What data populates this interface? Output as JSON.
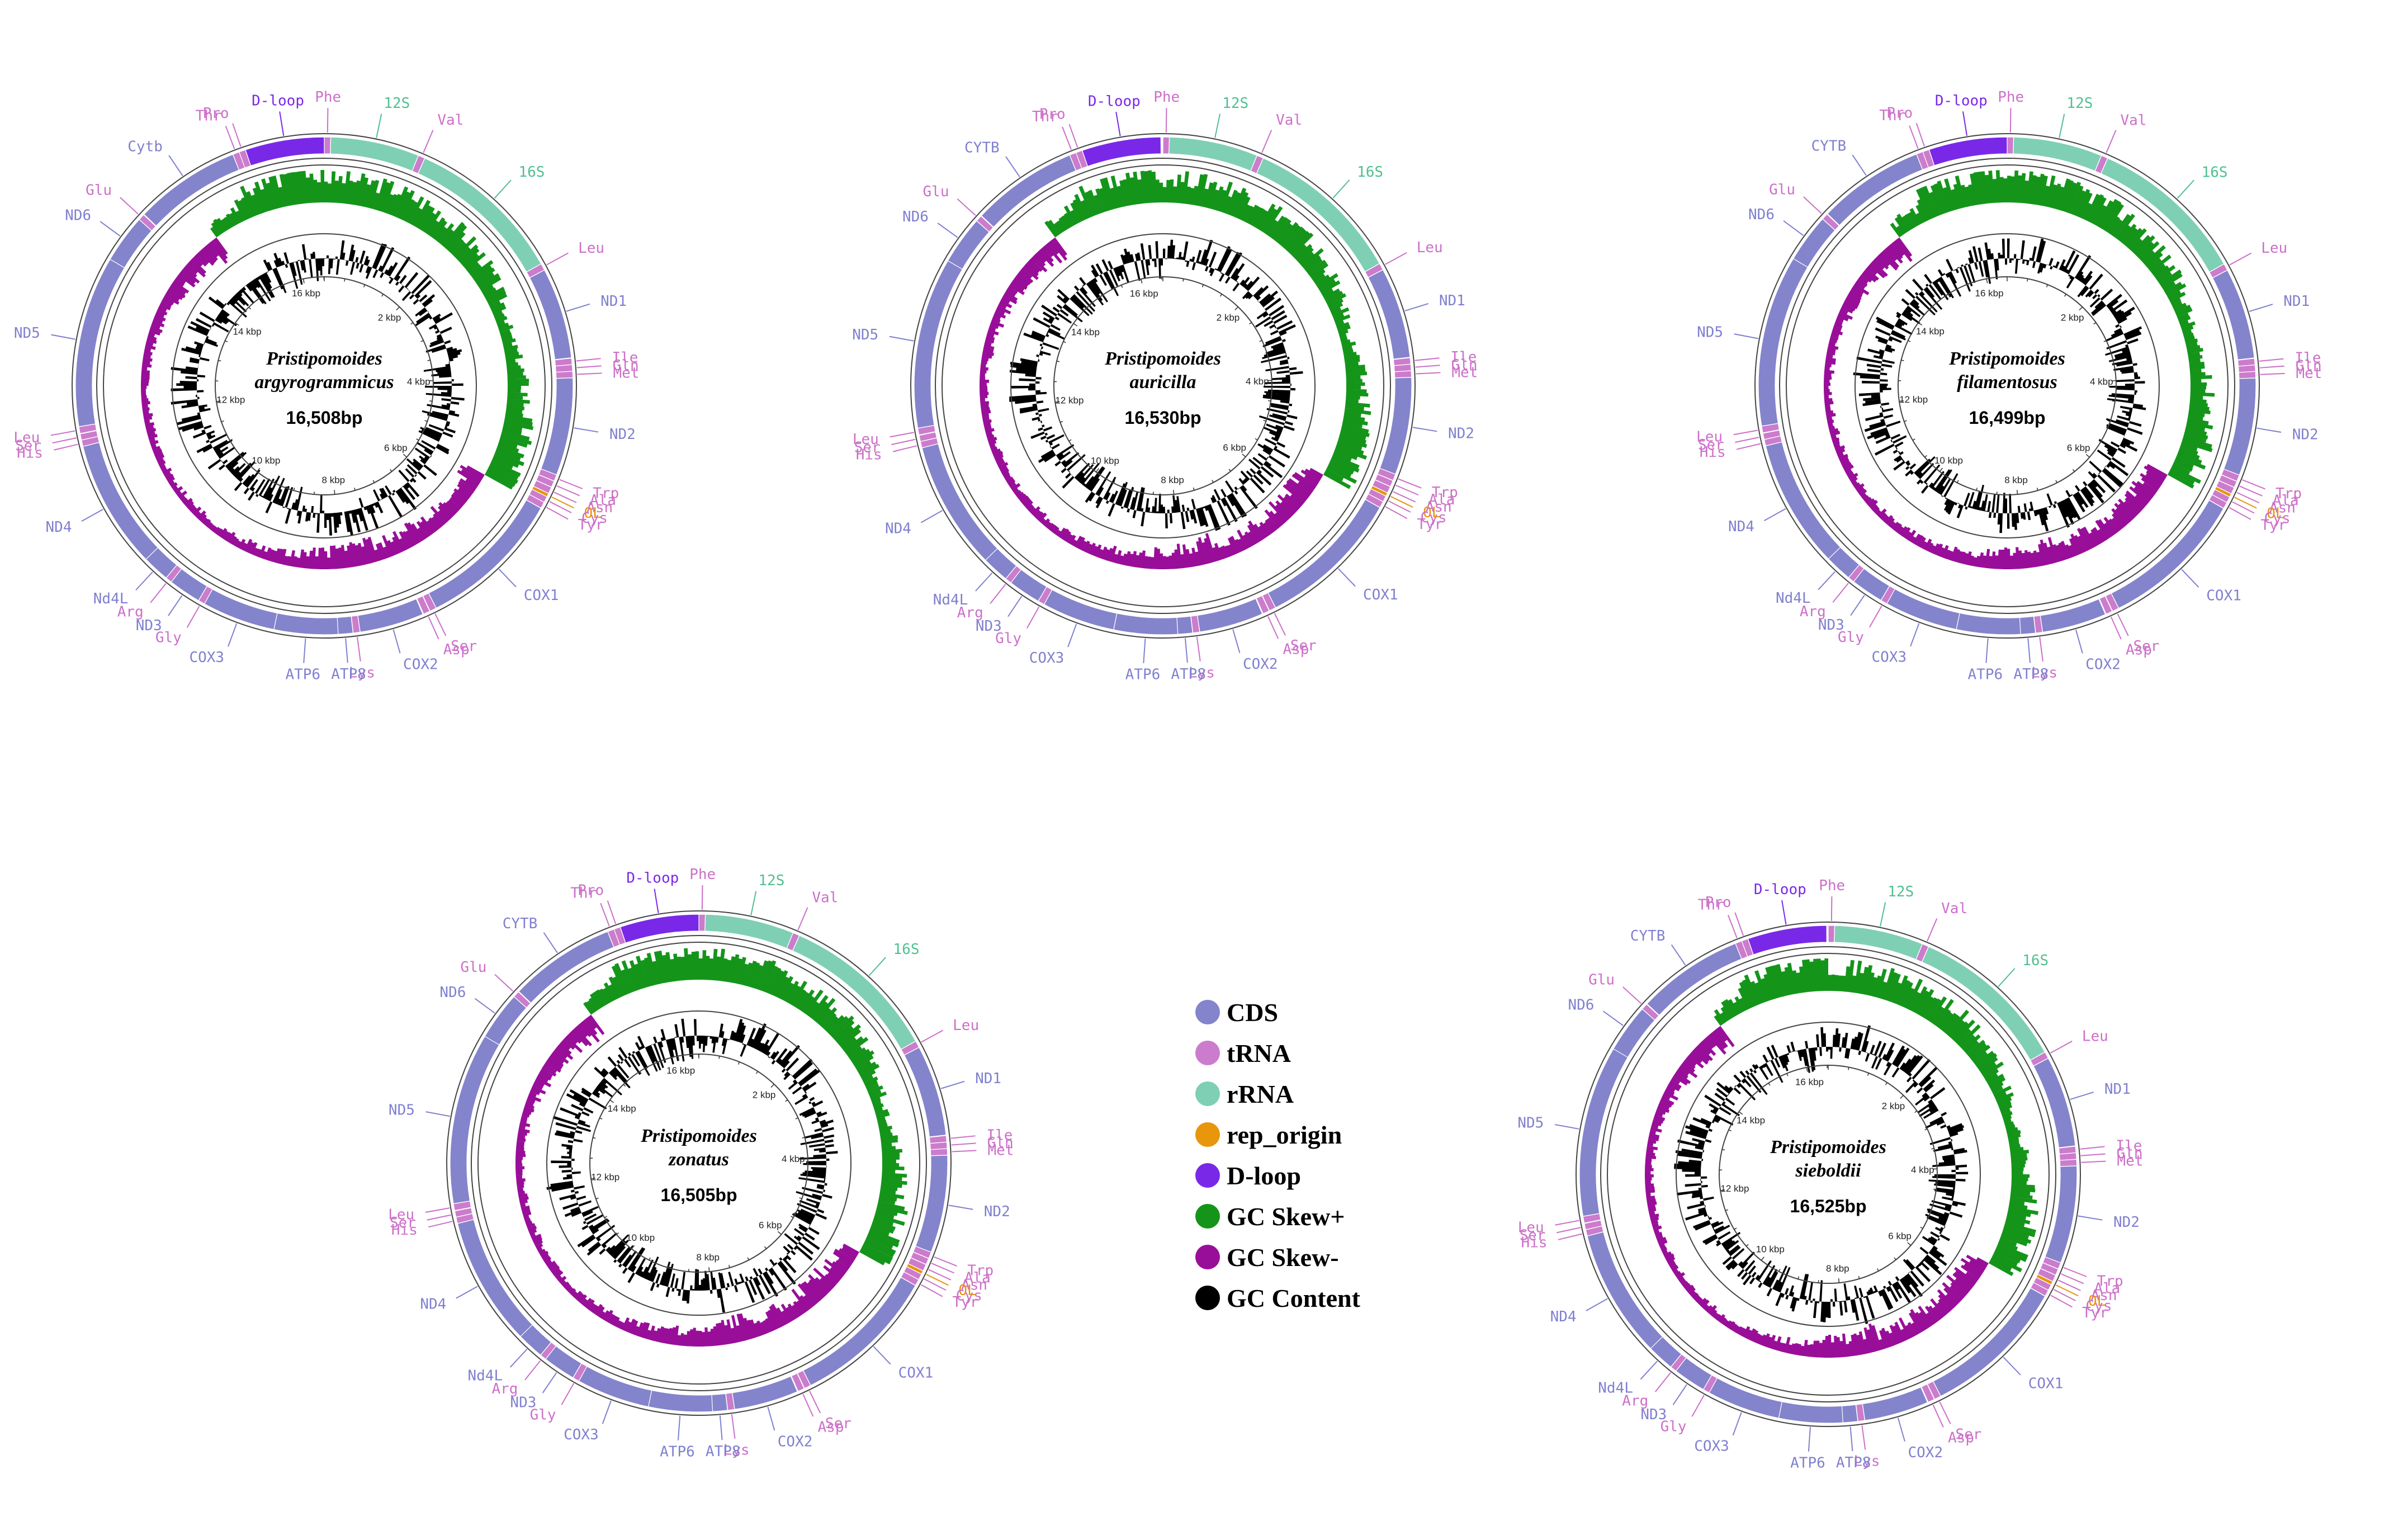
{
  "legend": {
    "items": [
      {
        "label": "CDS",
        "color": "#8484cc"
      },
      {
        "label": "tRNA",
        "color": "#cc7ccc"
      },
      {
        "label": "rRNA",
        "color": "#7fcfb4"
      },
      {
        "label": "rep_origin",
        "color": "#e8960c"
      },
      {
        "label": "D-loop",
        "color": "#7a28e8"
      },
      {
        "label": "GC Skew+",
        "color": "#14951a"
      },
      {
        "label": "GC Skew-",
        "color": "#990e99"
      },
      {
        "label": "GC Content",
        "color": "#000000"
      }
    ]
  },
  "colors": {
    "cds": "#8484cc",
    "cds_text": "#8080d0",
    "trna": "#cc7ccc",
    "trna_text": "#cc70c8",
    "rrna": "#7fcfb4",
    "rrna_text": "#50c090",
    "dloop": "#7a28e8",
    "rep_origin": "#e8960c",
    "gc_plus": "#14951a",
    "gc_minus": "#990e99",
    "gc_content": "#000000",
    "ring_line": "#444444"
  },
  "tick_labels": [
    "2 kbp",
    "4 kbp",
    "6 kbp",
    "8 kbp",
    "10 kbp",
    "12 kbp",
    "14 kbp",
    "16 kbp"
  ],
  "genomes": [
    {
      "name_line1": "Pristipomoides",
      "name_line2": "argyrogrammicus",
      "length": "16,508bp",
      "length_bp": 16508,
      "cytb_label": "Cytb"
    },
    {
      "name_line1": "Pristipomoides",
      "name_line2": "auricilla",
      "length": "16,530bp",
      "length_bp": 16530,
      "cytb_label": "CYTB"
    },
    {
      "name_line1": "Pristipomoides",
      "name_line2": "filamentosus",
      "length": "16,499bp",
      "length_bp": 16499,
      "cytb_label": "CYTB"
    },
    {
      "name_line1": "Pristipomoides",
      "name_line2": "zonatus",
      "length": "16,505bp",
      "length_bp": 16505,
      "cytb_label": "CYTB"
    },
    {
      "name_line1": "Pristipomoides",
      "name_line2": "sieboldii",
      "length": "16,525bp",
      "length_bp": 16525,
      "cytb_label": "CYTB"
    }
  ],
  "features": [
    {
      "label": "Phe",
      "type": "trna",
      "start": 0,
      "end": 68
    },
    {
      "label": "12S",
      "type": "rrna",
      "start": 69,
      "end": 1020
    },
    {
      "label": "Val",
      "type": "trna",
      "start": 1021,
      "end": 1092
    },
    {
      "label": "16S",
      "type": "rrna",
      "start": 1093,
      "end": 2780
    },
    {
      "label": "Leu",
      "type": "trna",
      "start": 2781,
      "end": 2854
    },
    {
      "label": "ND1",
      "type": "cds",
      "start": 2855,
      "end": 3829
    },
    {
      "label": "Ile",
      "type": "trna",
      "start": 3834,
      "end": 3903
    },
    {
      "label": "Gln",
      "type": "trna",
      "start": 3903,
      "end": 3973
    },
    {
      "label": "Met",
      "type": "trna",
      "start": 3973,
      "end": 4042
    },
    {
      "label": "ND2",
      "type": "cds",
      "start": 4043,
      "end": 5088
    },
    {
      "label": "Trp",
      "type": "trna",
      "start": 5088,
      "end": 5158
    },
    {
      "label": "Ala",
      "type": "trna",
      "start": 5160,
      "end": 5228
    },
    {
      "label": "Asn",
      "type": "trna",
      "start": 5230,
      "end": 5302
    },
    {
      "label": "OL",
      "type": "rep_origin",
      "start": 5303,
      "end": 5340
    },
    {
      "label": "Cys",
      "type": "trna",
      "start": 5341,
      "end": 5406
    },
    {
      "label": "Tyr",
      "type": "trna",
      "start": 5407,
      "end": 5476
    },
    {
      "label": "COX1",
      "type": "cds",
      "start": 5478,
      "end": 7028
    },
    {
      "label": "Ser",
      "type": "trna",
      "start": 7029,
      "end": 7100
    },
    {
      "label": "Asp",
      "type": "trna",
      "start": 7104,
      "end": 7175
    },
    {
      "label": "COX2",
      "type": "cds",
      "start": 7183,
      "end": 7873
    },
    {
      "label": "Lys",
      "type": "trna",
      "start": 7874,
      "end": 7947
    },
    {
      "label": "ATP8",
      "type": "cds",
      "start": 7949,
      "end": 8116
    },
    {
      "label": "ATP6",
      "type": "cds",
      "start": 8107,
      "end": 8790
    },
    {
      "label": "COX3",
      "type": "cds",
      "start": 8790,
      "end": 9575
    },
    {
      "label": "Gly",
      "type": "trna",
      "start": 9575,
      "end": 9645
    },
    {
      "label": "ND3",
      "type": "cds",
      "start": 9646,
      "end": 9995
    },
    {
      "label": "Arg",
      "type": "trna",
      "start": 9995,
      "end": 10063
    },
    {
      "label": "Nd4L",
      "type": "cds",
      "start": 10064,
      "end": 10360
    },
    {
      "label": "ND4",
      "type": "cds",
      "start": 10354,
      "end": 11734
    },
    {
      "label": "His",
      "type": "trna",
      "start": 11735,
      "end": 11803
    },
    {
      "label": "Ser",
      "type": "trna",
      "start": 11804,
      "end": 11870
    },
    {
      "label": "Leu",
      "type": "trna",
      "start": 11875,
      "end": 11947
    },
    {
      "label": "ND5",
      "type": "cds",
      "start": 11948,
      "end": 13786
    },
    {
      "label": "ND6",
      "type": "cds",
      "start": 13783,
      "end": 14304
    },
    {
      "label": "Glu",
      "type": "trna",
      "start": 14305,
      "end": 14373
    },
    {
      "label": "Cytb",
      "type": "cds",
      "start": 14379,
      "end": 15519
    },
    {
      "label": "Thr",
      "type": "trna",
      "start": 15520,
      "end": 15591
    },
    {
      "label": "Pro",
      "type": "trna",
      "start": 15591,
      "end": 15660
    },
    {
      "label": "D-loop",
      "type": "dloop",
      "start": 15661,
      "end": 16508
    }
  ]
}
